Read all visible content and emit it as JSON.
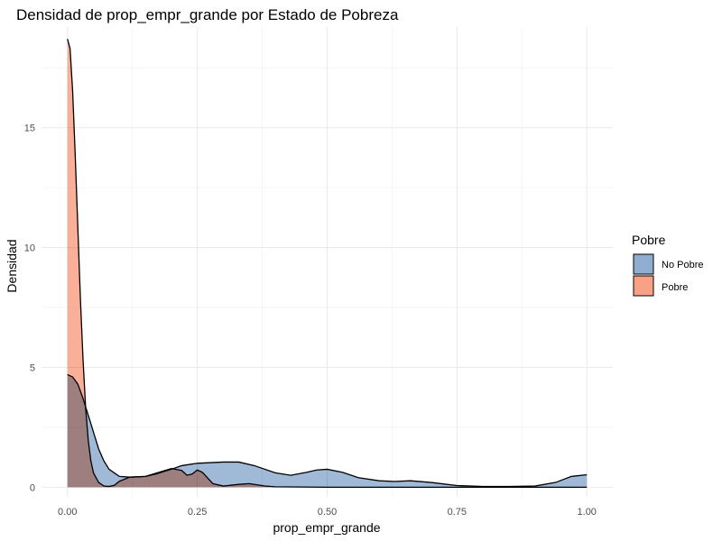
{
  "chart_data": {
    "type": "area",
    "title": "Densidad de prop_empr_grande por Estado de Pobreza",
    "xlabel": "prop_empr_grande",
    "ylabel": "Densidad",
    "xlim": [
      -0.05,
      1.05
    ],
    "ylim": [
      -0.4,
      19.2
    ],
    "x_ticks": [
      0.0,
      0.25,
      0.5,
      0.75,
      1.0
    ],
    "x_tick_labels": [
      "0.00",
      "0.25",
      "0.50",
      "0.75",
      "1.00"
    ],
    "y_ticks": [
      0,
      5,
      10,
      15
    ],
    "y_tick_labels": [
      "0",
      "5",
      "10",
      "15"
    ],
    "grid": true,
    "legend": {
      "title": "Pobre",
      "position": "right",
      "entries": [
        "No Pobre",
        "Pobre"
      ]
    },
    "series": [
      {
        "name": "No Pobre",
        "color": "#8fadd0",
        "points": [
          [
            0.0,
            4.7
          ],
          [
            0.01,
            4.6
          ],
          [
            0.02,
            4.3
          ],
          [
            0.03,
            3.7
          ],
          [
            0.04,
            3.0
          ],
          [
            0.05,
            2.3
          ],
          [
            0.06,
            1.6
          ],
          [
            0.07,
            1.1
          ],
          [
            0.08,
            0.75
          ],
          [
            0.1,
            0.45
          ],
          [
            0.12,
            0.42
          ],
          [
            0.15,
            0.45
          ],
          [
            0.17,
            0.55
          ],
          [
            0.2,
            0.75
          ],
          [
            0.22,
            0.9
          ],
          [
            0.25,
            1.0
          ],
          [
            0.3,
            1.05
          ],
          [
            0.33,
            1.05
          ],
          [
            0.36,
            0.9
          ],
          [
            0.4,
            0.6
          ],
          [
            0.43,
            0.5
          ],
          [
            0.46,
            0.62
          ],
          [
            0.48,
            0.72
          ],
          [
            0.5,
            0.75
          ],
          [
            0.53,
            0.62
          ],
          [
            0.56,
            0.4
          ],
          [
            0.6,
            0.27
          ],
          [
            0.63,
            0.24
          ],
          [
            0.66,
            0.27
          ],
          [
            0.7,
            0.2
          ],
          [
            0.75,
            0.07
          ],
          [
            0.8,
            0.03
          ],
          [
            0.85,
            0.03
          ],
          [
            0.9,
            0.05
          ],
          [
            0.94,
            0.2
          ],
          [
            0.97,
            0.45
          ],
          [
            1.0,
            0.52
          ]
        ]
      },
      {
        "name": "Pobre",
        "color": "#f9a186",
        "points": [
          [
            0.0,
            18.7
          ],
          [
            0.005,
            18.3
          ],
          [
            0.01,
            16.5
          ],
          [
            0.015,
            13.8
          ],
          [
            0.02,
            10.8
          ],
          [
            0.025,
            7.8
          ],
          [
            0.03,
            5.3
          ],
          [
            0.035,
            3.3
          ],
          [
            0.04,
            1.95
          ],
          [
            0.045,
            1.1
          ],
          [
            0.05,
            0.6
          ],
          [
            0.06,
            0.2
          ],
          [
            0.07,
            0.05
          ],
          [
            0.08,
            0.03
          ],
          [
            0.09,
            0.08
          ],
          [
            0.1,
            0.25
          ],
          [
            0.12,
            0.42
          ],
          [
            0.15,
            0.45
          ],
          [
            0.18,
            0.65
          ],
          [
            0.2,
            0.78
          ],
          [
            0.22,
            0.7
          ],
          [
            0.23,
            0.5
          ],
          [
            0.24,
            0.55
          ],
          [
            0.25,
            0.72
          ],
          [
            0.26,
            0.62
          ],
          [
            0.28,
            0.15
          ],
          [
            0.3,
            0.05
          ],
          [
            0.33,
            0.12
          ],
          [
            0.35,
            0.15
          ],
          [
            0.38,
            0.05
          ],
          [
            0.4,
            0.02
          ],
          [
            0.5,
            0.0
          ],
          [
            1.0,
            0.0
          ]
        ]
      }
    ]
  }
}
